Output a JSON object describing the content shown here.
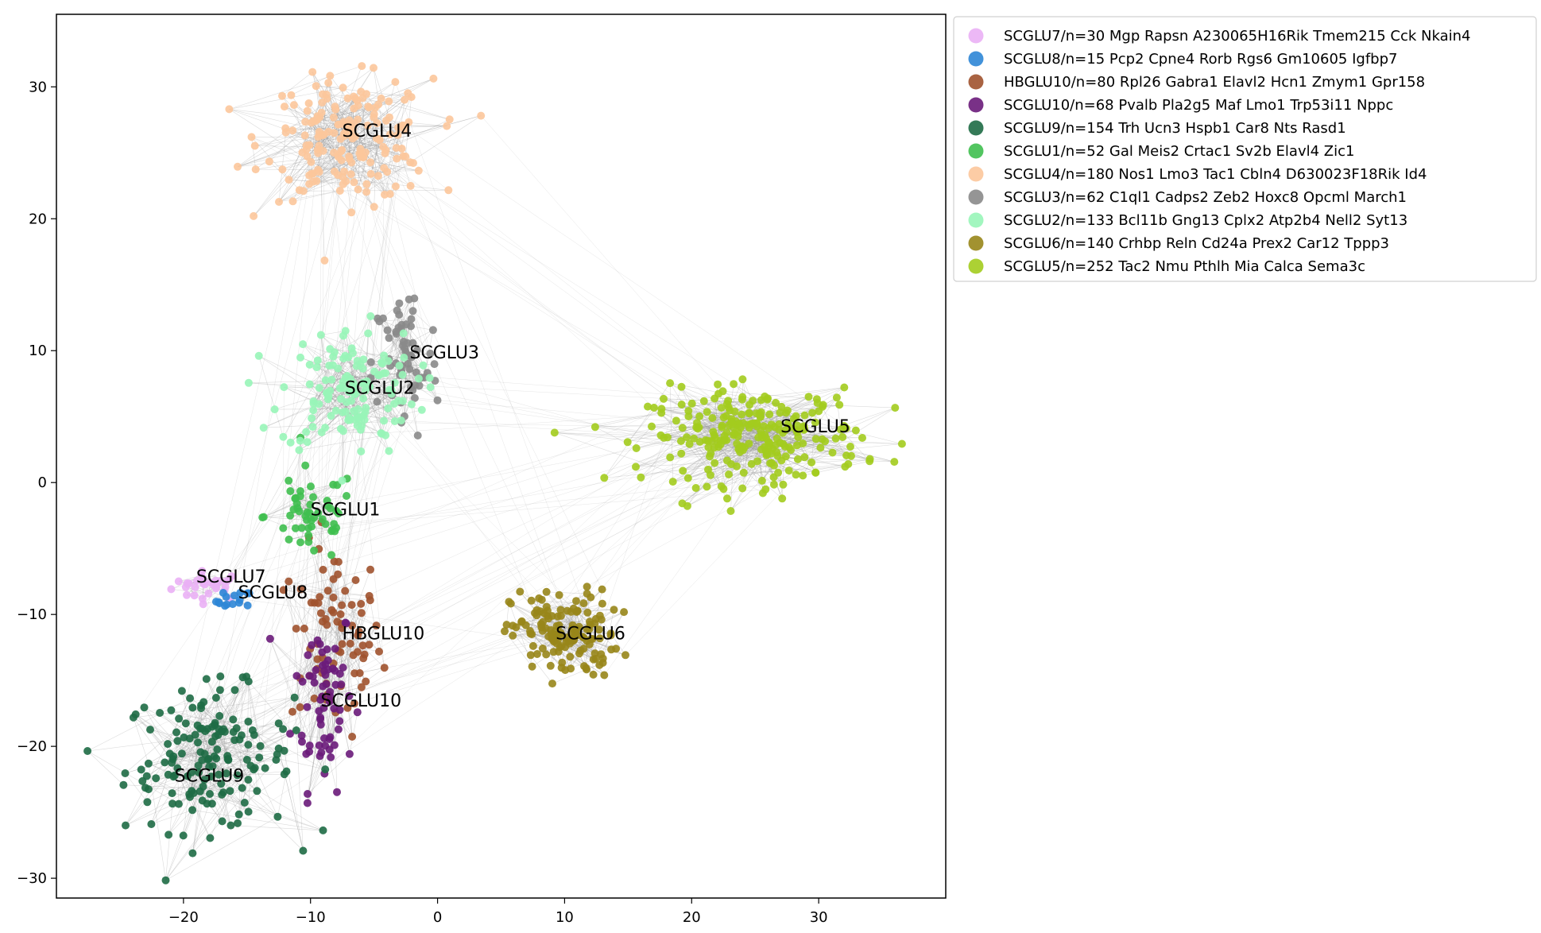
{
  "chart_data": {
    "type": "scatter",
    "title": "",
    "xlabel": "",
    "ylabel": "",
    "xlim": [
      -30,
      40
    ],
    "ylim": [
      -31.5,
      35.5
    ],
    "xticks": [
      -20,
      -10,
      0,
      10,
      20,
      30
    ],
    "yticks": [
      -30,
      -20,
      -10,
      0,
      10,
      20,
      30
    ],
    "xtick_labels": [
      "−20",
      "−10",
      "0",
      "10",
      "20",
      "30"
    ],
    "ytick_labels": [
      "−30",
      "−20",
      "−10",
      "0",
      "10",
      "20",
      "30"
    ],
    "grid": false,
    "legend_position": "outside-upper-right",
    "edge_color": "#999999",
    "series": [
      {
        "name": "SCGLU7/n=30 Mgp Rapsn A230065H16Rik Tmem215 Cck Nkain4",
        "label": "SCGLU7",
        "color": "#eab0f5",
        "center": [
          -18,
          -7.8
        ],
        "spread": [
          2.4,
          0.9
        ],
        "count": 30
      },
      {
        "name": "SCGLU8/n=15 Pcp2 Cpne4 Rorb Rgs6 Gm10605 Igfbp7",
        "label": "SCGLU8",
        "color": "#2e86d6",
        "center": [
          -16,
          -9.0
        ],
        "spread": [
          1.2,
          0.7
        ],
        "count": 15
      },
      {
        "name": "HBGLU10/n=80 Rpl26 Gabra1 Elavl2 Hcn1 Zmym1 Gpr158",
        "label": "HBGLU10",
        "color": "#a0522d",
        "center": [
          -8,
          -12
        ],
        "spread": [
          3.0,
          6.0
        ],
        "count": 80
      },
      {
        "name": "SCGLU10/n=68 Pvalb Pla2g5 Maf Lmo1 Trp53i11 Nppc",
        "label": "SCGLU10",
        "color": "#6a1b7a",
        "center": [
          -9,
          -16
        ],
        "spread": [
          2.0,
          6.0
        ],
        "count": 68
      },
      {
        "name": "SCGLU9/n=154 Trh Ucn3 Hspb1 Car8 Nts Rasd1",
        "label": "SCGLU9",
        "color": "#1e6b45",
        "center": [
          -18,
          -21
        ],
        "spread": [
          5.5,
          4.5
        ],
        "count": 154
      },
      {
        "name": "SCGLU1/n=52 Gal Meis2 Crtac1 Sv2b Elavl4 Zic1",
        "label": "SCGLU1",
        "color": "#3fbf4f",
        "center": [
          -10,
          -2.5
        ],
        "spread": [
          3.0,
          3.0
        ],
        "count": 52
      },
      {
        "name": "SCGLU4/n=180 Nos1 Lmo3 Tac1 Cbln4 D630023F18Rik Id4",
        "label": "SCGLU4",
        "color": "#fcc79b",
        "center": [
          -7,
          26
        ],
        "spread": [
          5.5,
          3.8
        ],
        "count": 180
      },
      {
        "name": "SCGLU3/n=62 C1ql1 Cadps2 Zeb2 Hoxc8 Opcml March1",
        "label": "SCGLU3",
        "color": "#8a8a8a",
        "center": [
          -2.5,
          9
        ],
        "spread": [
          2.2,
          5.0
        ],
        "count": 62
      },
      {
        "name": "SCGLU2/n=133 Bcl11b Gng13 Cplx2 Atp2b4 Nell2 Syt13",
        "label": "SCGLU2",
        "color": "#98f5b8",
        "center": [
          -7,
          7
        ],
        "spread": [
          4.5,
          4.0
        ],
        "count": 133
      },
      {
        "name": "SCGLU6/n=140 Crhbp Reln Cd24a Prex2 Car12 Tppp3",
        "label": "SCGLU6",
        "color": "#98861a",
        "center": [
          10,
          -11.5
        ],
        "spread": [
          3.5,
          2.8
        ],
        "count": 140
      },
      {
        "name": "SCGLU5/n=252 Tac2 Nmu Pthlh Mia Calca Sema3c",
        "label": "SCGLU5",
        "color": "#a3cc1e",
        "center": [
          25,
          3.5
        ],
        "spread": [
          7.0,
          3.0
        ],
        "count": 252
      }
    ],
    "annotations": [
      {
        "text": "SCGLU4",
        "x": -7.5,
        "y": 26.7
      },
      {
        "text": "SCGLU3",
        "x": -2.2,
        "y": 9.9
      },
      {
        "text": "SCGLU2",
        "x": -7.3,
        "y": 7.2
      },
      {
        "text": "SCGLU5",
        "x": 27,
        "y": 4.3
      },
      {
        "text": "SCGLU1",
        "x": -10,
        "y": -2.0
      },
      {
        "text": "SCGLU7",
        "x": -19,
        "y": -7.1
      },
      {
        "text": "SCGLU8",
        "x": -15.7,
        "y": -8.3
      },
      {
        "text": "HBGLU10",
        "x": -7.5,
        "y": -11.4
      },
      {
        "text": "SCGLU6",
        "x": 9.3,
        "y": -11.4
      },
      {
        "text": "SCGLU10",
        "x": -9.2,
        "y": -16.5
      },
      {
        "text": "SCGLU9",
        "x": -20.7,
        "y": -22.2
      }
    ]
  }
}
